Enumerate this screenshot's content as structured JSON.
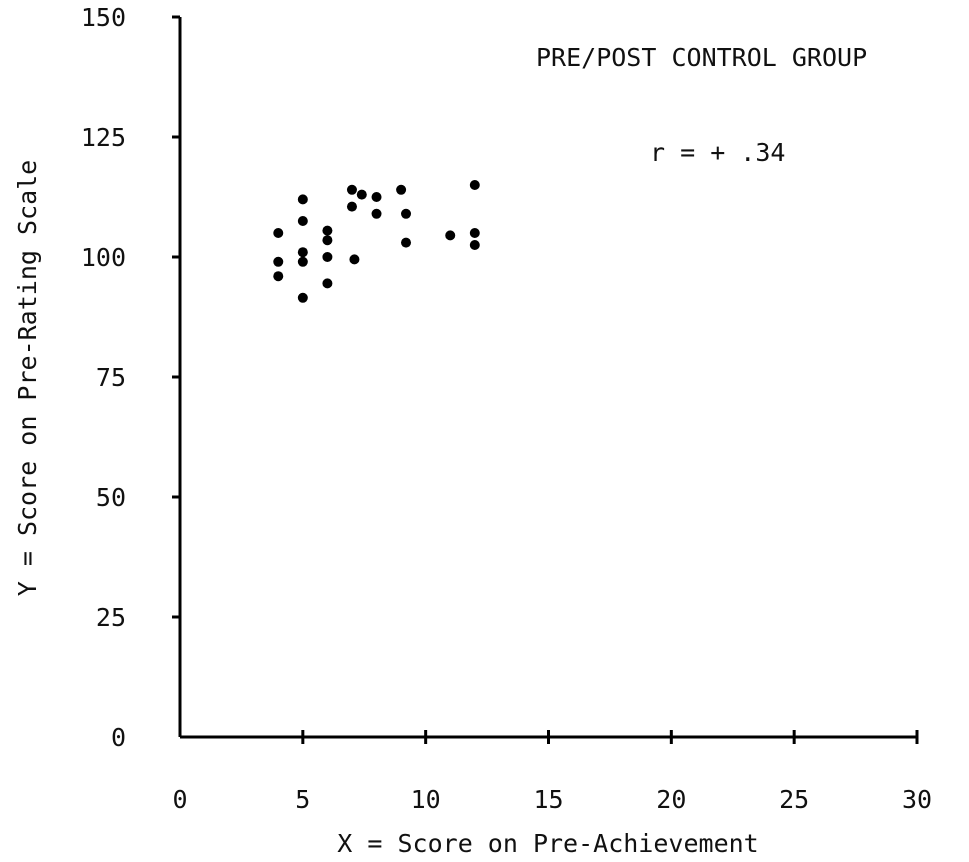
{
  "chart_data": {
    "type": "scatter",
    "title": "PRE/POST CONTROL GROUP",
    "annotation": "r = + .34",
    "xlabel": "X = Score on Pre-Achievement",
    "ylabel": "Y = Score on Pre-Rating Scale",
    "xlim": [
      0,
      30
    ],
    "ylim": [
      0,
      150
    ],
    "x_ticks": [
      0,
      5,
      10,
      15,
      20,
      25,
      30
    ],
    "y_ticks": [
      0,
      25,
      50,
      75,
      100,
      125,
      150
    ],
    "x_tick_labels": [
      "0",
      "5",
      "10",
      "15",
      "20",
      "25",
      "30"
    ],
    "y_tick_labels": [
      "0",
      "25",
      "50",
      "75",
      "100",
      "125",
      "150"
    ],
    "grid": false,
    "points": [
      {
        "x": 4,
        "y": 105
      },
      {
        "x": 4,
        "y": 99
      },
      {
        "x": 4,
        "y": 96
      },
      {
        "x": 5,
        "y": 112
      },
      {
        "x": 5,
        "y": 107.5
      },
      {
        "x": 5,
        "y": 101
      },
      {
        "x": 5,
        "y": 99
      },
      {
        "x": 5,
        "y": 91.5
      },
      {
        "x": 6,
        "y": 105.5
      },
      {
        "x": 6,
        "y": 103.5
      },
      {
        "x": 6,
        "y": 100
      },
      {
        "x": 6,
        "y": 94.5
      },
      {
        "x": 7,
        "y": 114
      },
      {
        "x": 7,
        "y": 110.5
      },
      {
        "x": 7.1,
        "y": 99.5
      },
      {
        "x": 7.4,
        "y": 113
      },
      {
        "x": 8,
        "y": 112.5
      },
      {
        "x": 8,
        "y": 109
      },
      {
        "x": 9,
        "y": 114
      },
      {
        "x": 9.2,
        "y": 109
      },
      {
        "x": 9.2,
        "y": 103
      },
      {
        "x": 11,
        "y": 104.5
      },
      {
        "x": 12,
        "y": 115
      },
      {
        "x": 12,
        "y": 105
      },
      {
        "x": 12,
        "y": 102.5
      }
    ]
  }
}
